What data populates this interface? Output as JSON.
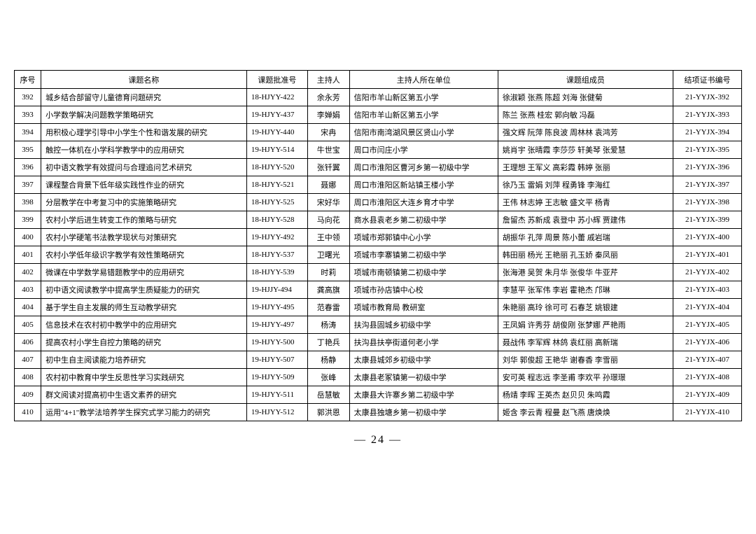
{
  "table": {
    "headers": {
      "seq": "序号",
      "title": "课题名称",
      "code": "课题批准号",
      "host": "主持人",
      "unit": "主持人所在单位",
      "members": "课题组成员",
      "cert": "结项证书编号"
    },
    "rows": [
      {
        "seq": "392",
        "title": "城乡结合部留守儿童德育问题研究",
        "code": "18-HJYY-422",
        "host": "余永芳",
        "unit": "信阳市羊山新区第五小学",
        "members": "徐淑颖 张燕 陈超 刘海 张健菊",
        "cert": "21-YYJX-392"
      },
      {
        "seq": "393",
        "title": "小学数学解决问题教学策略研究",
        "code": "19-HJYY-437",
        "host": "李婵娟",
        "unit": "信阳市羊山新区第五小学",
        "members": "陈兰 张燕 桂宏 郭向敏 冯磊",
        "cert": "21-YYJX-393"
      },
      {
        "seq": "394",
        "title": "用积极心理学引导中小学生个性和谐发展的研究",
        "code": "19-HJYY-440",
        "host": "宋冉",
        "unit": "信阳市南湾湖风景区贤山小学",
        "members": "强文辉 阮萍 陈良波 周林林 袁鸿芳",
        "cert": "21-YYJX-394"
      },
      {
        "seq": "395",
        "title": "触控一体机在小学科学教学中的应用研究",
        "code": "19-HJYY-514",
        "host": "牛世宝",
        "unit": "周口市闫庄小学",
        "members": "姚肖宇 张晴霞 李莎莎 轩美琴 张爱慧",
        "cert": "21-YYJX-395"
      },
      {
        "seq": "396",
        "title": "初中语文教学有效提问与合理追问艺术研究",
        "code": "18-HJYY-520",
        "host": "张钎翼",
        "unit": "周口市淮阳区曹河乡第一初级中学",
        "members": "王理想 王军义 高彩霞 韩婷 张丽",
        "cert": "21-YYJX-396"
      },
      {
        "seq": "397",
        "title": "课程整合背景下低年级实践性作业的研究",
        "code": "18-HJYY-521",
        "host": "聂娜",
        "unit": "周口市淮阳区新站镇王楼小学",
        "members": "徐乃玉 雷娟 刘萍 程勇锋 李海红",
        "cert": "21-YYJX-397"
      },
      {
        "seq": "398",
        "title": "分层教学在中考复习中的实施策略研究",
        "code": "18-HJYY-525",
        "host": "宋好华",
        "unit": "周口市淮阳区大连乡育才中学",
        "members": "王伟 林志婷 王志敏  盛文平 杨青",
        "cert": "21-YYJX-398"
      },
      {
        "seq": "399",
        "title": "农村小学后进生转变工作的策略与研究",
        "code": "18-HJYY-528",
        "host": "马向花",
        "unit": "商水县袁老乡第二初级中学",
        "members": "詹留杰 苏新成 袁登中 苏小辉 贾建伟",
        "cert": "21-YYJX-399"
      },
      {
        "seq": "400",
        "title": "农村小学硬笔书法教学现状与对策研究",
        "code": "19-HJYY-492",
        "host": "王中领",
        "unit": "项城市郑郭镇中心小学",
        "members": "胡振华 孔萍 周景 陈小蕾 戚岩瑞",
        "cert": "21-YYJX-400"
      },
      {
        "seq": "401",
        "title": "农村小学低年级识字教学有效性策略研究",
        "code": "18-HJYY-537",
        "host": "卫曙光",
        "unit": "项城市李寨镇第二初级中学",
        "members": "韩田丽 杨光 王艳丽 孔玉娇 秦凤丽",
        "cert": "21-YYJX-401"
      },
      {
        "seq": "402",
        "title": "微课在中学数学易错题教学中的应用研究",
        "code": "18-HJYY-539",
        "host": "时莉",
        "unit": "项城市南顿镇第二初级中学",
        "members": "张海港 吴贺 朱月华 张俊华 牛亚芹",
        "cert": "21-YYJX-402"
      },
      {
        "seq": "403",
        "title": "初中语文阅读教学中提高学生质疑能力的研究",
        "code": "19-HJJY-494",
        "host": "龚高旗",
        "unit": "项城市孙店镇中心校",
        "members": "李慧平 张军伟 李岩 霍艳杰 邝琳",
        "cert": "21-YYJX-403"
      },
      {
        "seq": "404",
        "title": "基于学生自主发展的师生互动教学研究",
        "code": "19-HJYY-495",
        "host": "范春雷",
        "unit": "项城市教育局 教研室",
        "members": "朱艳丽 高玲 徐可可 石春芝 姚银建",
        "cert": "21-YYJX-404"
      },
      {
        "seq": "405",
        "title": "信息技术在农村初中教学中的应用研究",
        "code": "19-HJYY-497",
        "host": "杨涛",
        "unit": "扶沟县固城乡初级中学",
        "members": "王凤娟 许秀芬 胡俊刚 张梦娜 严艳雨",
        "cert": "21-YYJX-405"
      },
      {
        "seq": "406",
        "title": "提高农村小学生自控力策略的研究",
        "code": "19-HJYY-500",
        "host": "丁艳兵",
        "unit": "扶沟县扶亭街道何老小学",
        "members": "聂战伟 李军辉 林鸽 袁红丽  高新瑞",
        "cert": "21-YYJX-406"
      },
      {
        "seq": "407",
        "title": "初中生自主阅读能力培养研究",
        "code": "19-HJYY-507",
        "host": "杨静",
        "unit": "太康县城郊乡初级中学",
        "members": "刘华 郭俊超 王艳华 谢春香 李雪丽",
        "cert": "21-YYJX-407"
      },
      {
        "seq": "408",
        "title": "农村初中教育中学生反思性学习实践研究",
        "code": "19-HJYY-509",
        "host": "张峰",
        "unit": "太康县老冢镇第一初级中学",
        "members": "安可英  程志远 李圣甫 李欢平 孙璟璟",
        "cert": "21-YYJX-408"
      },
      {
        "seq": "409",
        "title": "群文阅读对提高初中生语文素养的研究",
        "code": "19-HJYY-511",
        "host": "岳慧敏",
        "unit": "太康县大许寨乡第二初级中学",
        "members": "杨靖 李晖 王英杰 赵贝贝 朱鸣霞",
        "cert": "21-YYJX-409"
      },
      {
        "seq": "410",
        "title": "运用\"4+1\"教学法培养学生探究式学习能力的研究",
        "code": "19-HJYY-512",
        "host": "郭洪恩",
        "unit": "太康县独塘乡第一初级中学",
        "members": "姬含 李云青 程曼 赵飞燕 唐焕焕",
        "cert": "21-YYJX-410"
      }
    ]
  },
  "page_number": "— 24 —"
}
